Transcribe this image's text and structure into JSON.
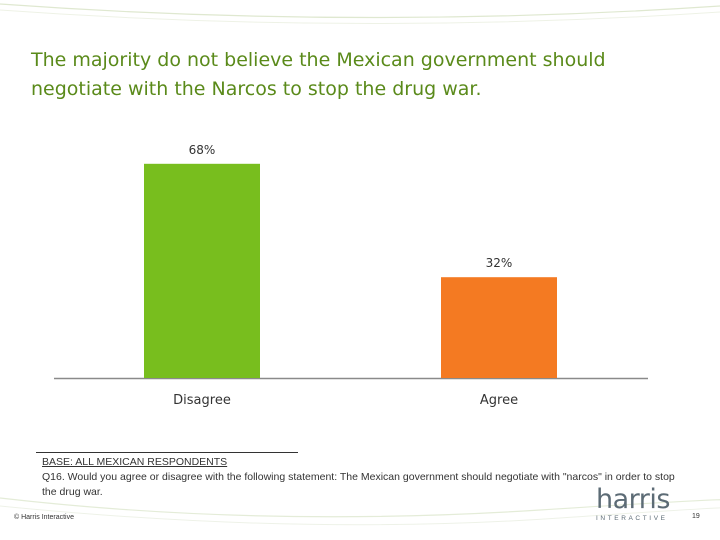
{
  "slide": {
    "title": "The majority do not believe the Mexican government should negotiate with the Narcos to stop the drug war."
  },
  "chart_data": {
    "type": "bar",
    "title": "",
    "categories": [
      "Disagree",
      "Agree"
    ],
    "values": [
      68,
      32
    ],
    "value_labels": [
      "68%",
      "32%"
    ],
    "colors": [
      "#78be1e",
      "#f47a22"
    ],
    "ylim": [
      0,
      100
    ],
    "xlabel": "",
    "ylabel": "",
    "grid": false,
    "legend": "none"
  },
  "footnote": {
    "base_label": "BASE: ALL MEXICAN RESPONDENTS",
    "question": "Q16.  Would you agree or disagree with the following statement: The Mexican government should negotiate with \"narcos\" in order to stop the drug war."
  },
  "footer": {
    "copyright": "© Harris Interactive",
    "logo_word": "harris",
    "logo_sub": "INTERACTIVE",
    "page_number": "19"
  }
}
